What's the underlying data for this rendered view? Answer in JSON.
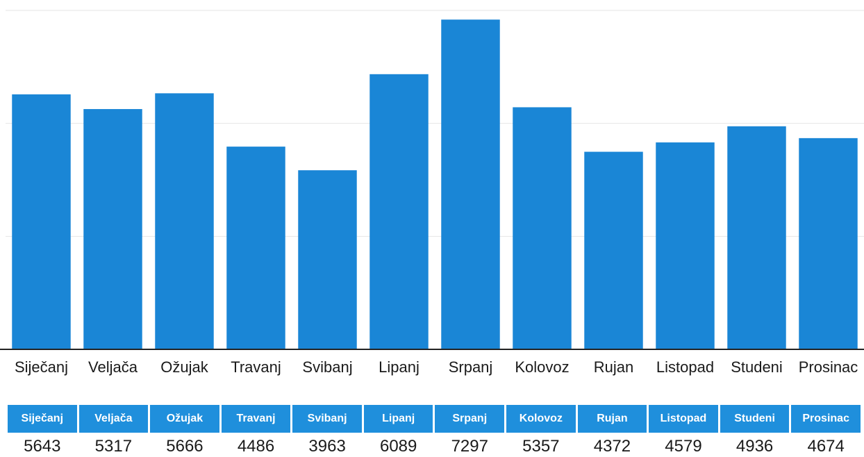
{
  "colors": {
    "bar": "#1a86d6",
    "header_bg": "#1f8fdc",
    "header_text": "#ffffff",
    "axis": "#222222",
    "grid": "#e6e6e6"
  },
  "chart_data": {
    "type": "bar",
    "categories": [
      "Siječanj",
      "Veljača",
      "Ožujak",
      "Travanj",
      "Svibanj",
      "Lipanj",
      "Srpanj",
      "Kolovoz",
      "Rujan",
      "Listopad",
      "Studeni",
      "Prosinac"
    ],
    "values": [
      5643,
      5317,
      5666,
      4486,
      3963,
      6089,
      7297,
      5357,
      4372,
      4579,
      4936,
      4674
    ],
    "title": "",
    "xlabel": "",
    "ylabel": "",
    "ylim": [
      0,
      7500
    ],
    "grid": true,
    "legend": "none"
  },
  "table": {
    "headers": [
      "Siječanj",
      "Veljača",
      "Ožujak",
      "Travanj",
      "Svibanj",
      "Lipanj",
      "Srpanj",
      "Kolovoz",
      "Rujan",
      "Listopad",
      "Studeni",
      "Prosinac"
    ],
    "values": [
      "5643",
      "5317",
      "5666",
      "4486",
      "3963",
      "6089",
      "7297",
      "5357",
      "4372",
      "4579",
      "4936",
      "4674"
    ]
  }
}
